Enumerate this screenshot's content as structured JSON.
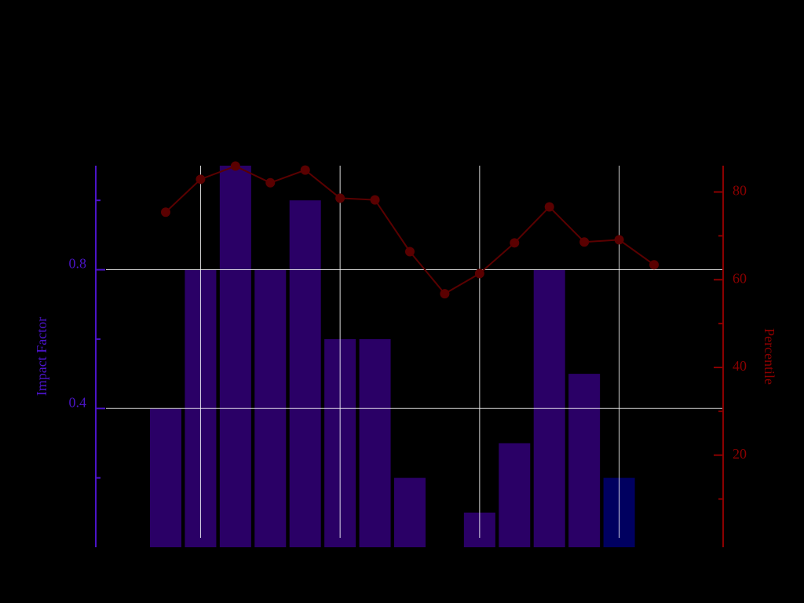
{
  "chart_data": {
    "type": "bar-line",
    "categories": [
      null,
      null,
      null,
      null,
      null,
      null,
      null,
      null,
      null,
      null,
      null,
      null,
      null,
      null,
      null
    ],
    "series": [
      {
        "name": "Impact Factor",
        "type": "bar",
        "color": "#2a0066",
        "colors": [
          "#2a0066",
          "#2a0066",
          "#2a0066",
          "#2a0066",
          "#2a0066",
          "#2a0066",
          "#2a0066",
          "#2a0066",
          "#2a0066",
          "#2a0066",
          "#2a0066",
          "#2a0066",
          "#2a0066",
          "#000060",
          "#2a0066"
        ],
        "values": [
          0.4,
          0.8,
          1.1,
          0.8,
          1.0,
          0.6,
          0.6,
          0.2,
          null,
          0.1,
          0.3,
          0.8,
          0.5,
          0.2,
          null
        ]
      },
      {
        "name": "Percentile",
        "type": "line",
        "axis": "y2",
        "color": "#5a0000",
        "values": [
          75.4,
          82.9,
          85.9,
          82.1,
          85.0,
          78.6,
          78.2,
          66.4,
          56.8,
          61.4,
          68.4,
          76.6,
          68.6,
          69.1,
          63.4
        ]
      }
    ],
    "ylabel": "Impact Factor",
    "y2label": "Percentile",
    "ylim": [
      0,
      1.1
    ],
    "yticks": [
      0.4,
      0.8
    ],
    "yminorticks": [
      0.2,
      0.6,
      1.0
    ],
    "ycolor": "#4b14c8",
    "y2lim": [
      -1,
      86
    ],
    "y2ticks": [
      20,
      40,
      60,
      80
    ],
    "y2minorticks": [
      10,
      30,
      50,
      70
    ],
    "y2color": "#8b0000",
    "xgrid": [
      1,
      5,
      9,
      13
    ],
    "grid": true,
    "gridcolor": "#ffffff"
  }
}
